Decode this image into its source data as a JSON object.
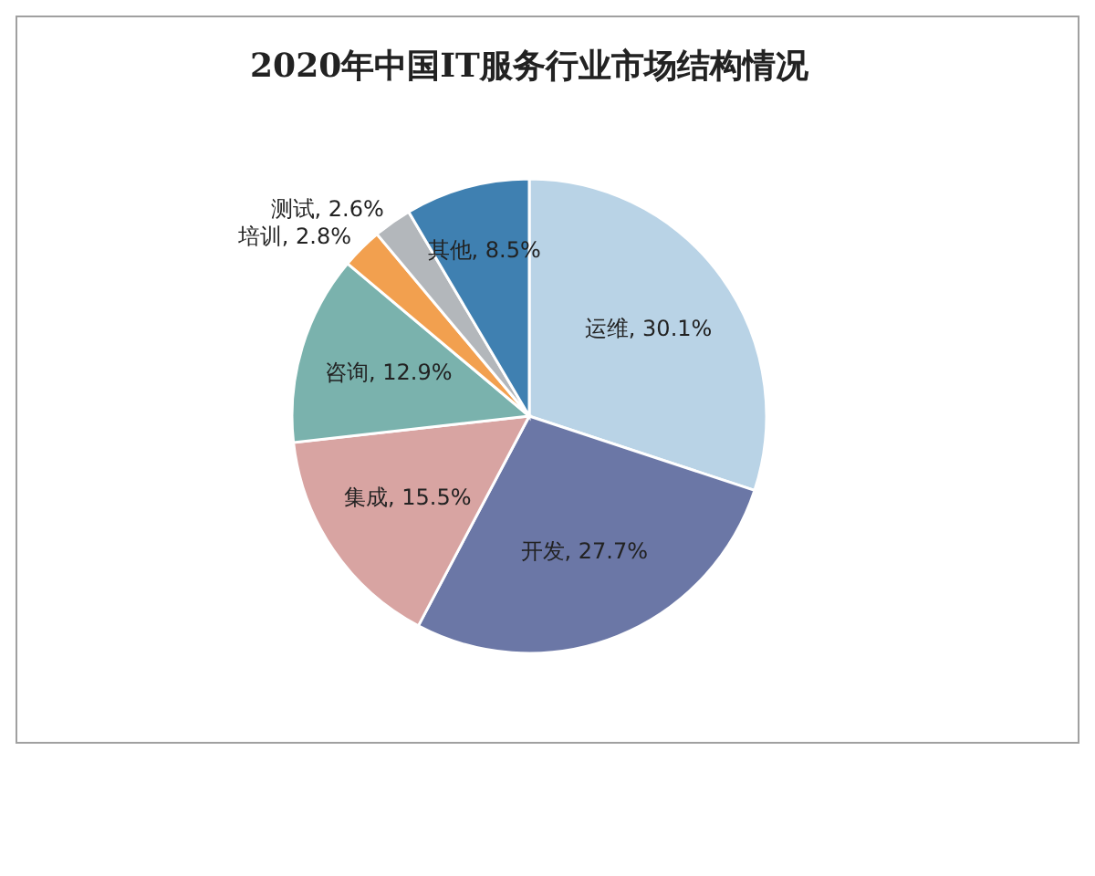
{
  "chart_data": {
    "type": "pie",
    "title": "2020年中国IT服务行业市场结构情况",
    "categories": [
      "运维",
      "开发",
      "集成",
      "咨询",
      "培训",
      "测试",
      "其他"
    ],
    "values": [
      30.1,
      27.7,
      15.5,
      12.9,
      2.8,
      2.6,
      8.5
    ],
    "value_labels": [
      "30.1%",
      "27.7%",
      "15.5%",
      "12.9%",
      "2.8%",
      "2.6%",
      "8.5%"
    ],
    "colors": [
      "#b9d3e6",
      "#6b77a6",
      "#d8a4a2",
      "#7ab2ad",
      "#f2a04f",
      "#b3b7bb",
      "#3f80b1"
    ]
  }
}
